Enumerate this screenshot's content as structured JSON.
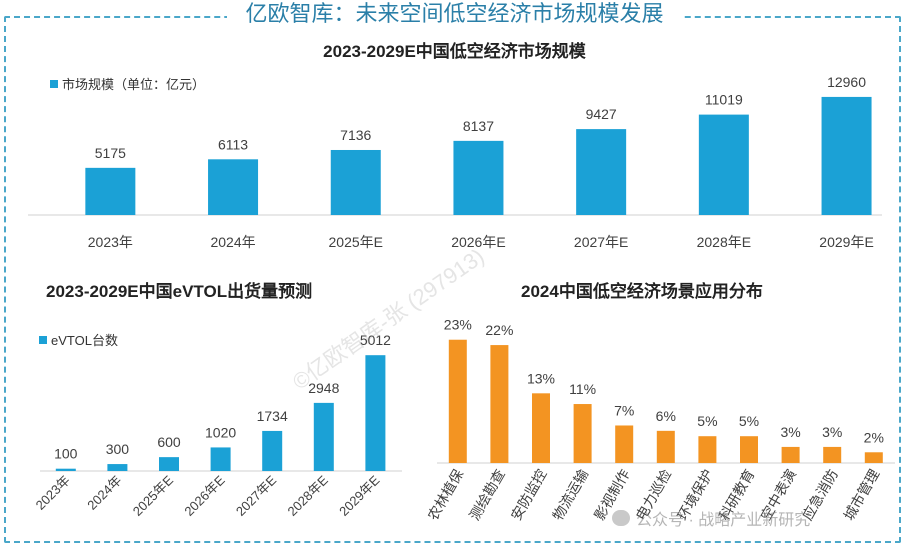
{
  "main_title": "亿欧智库：未来空间低空经济市场规模发展",
  "watermark": "©亿欧智库-张 (297913)",
  "brand": "公众号 · 战略产业新研究",
  "colors": {
    "blue": "#1ba1d6",
    "orange": "#f39422",
    "title": "#2a7fa8",
    "frame": "#4aa7c9"
  },
  "chart_data": [
    {
      "type": "bar",
      "title": "2023-2029E中国低空经济市场规模",
      "legend": "市场规模（单位：亿元）",
      "categories": [
        "2023年",
        "2024年",
        "2025年E",
        "2026年E",
        "2027年E",
        "2028年E",
        "2029年E"
      ],
      "values": [
        5175,
        6113,
        7136,
        8137,
        9427,
        11019,
        12960
      ],
      "labels": [
        "5175",
        "6113",
        "7136",
        "8137",
        "9427",
        "11019",
        "12960"
      ],
      "ylim": [
        0,
        13500
      ],
      "grid": false
    },
    {
      "type": "bar",
      "title": "2023-2029E中国eVTOL出货量预测",
      "legend": "eVTOL台数",
      "categories": [
        "2023年",
        "2024年",
        "2025年E",
        "2026年E",
        "2027年E",
        "2028年E",
        "2029年E"
      ],
      "values": [
        100,
        300,
        600,
        1020,
        1734,
        2948,
        5012
      ],
      "labels": [
        "100",
        "300",
        "600",
        "1020",
        "1734",
        "2948",
        "5012"
      ],
      "ylim": [
        0,
        5150
      ],
      "grid": false
    },
    {
      "type": "bar",
      "title": "2024中国低空经济场景应用分布",
      "categories": [
        "农林植保",
        "测绘勘查",
        "安防监控",
        "物流运输",
        "影视制作",
        "电力巡检",
        "环境保护",
        "科研教育",
        "空中表演",
        "应急消防",
        "城市管理"
      ],
      "values": [
        23,
        22,
        13,
        11,
        7,
        6,
        5,
        5,
        3,
        3,
        2
      ],
      "labels": [
        "23%",
        "22%",
        "13%",
        "11%",
        "7%",
        "6%",
        "5%",
        "5%",
        "3%",
        "3%",
        "2%"
      ],
      "ylim": [
        0,
        25
      ],
      "grid": false
    }
  ]
}
